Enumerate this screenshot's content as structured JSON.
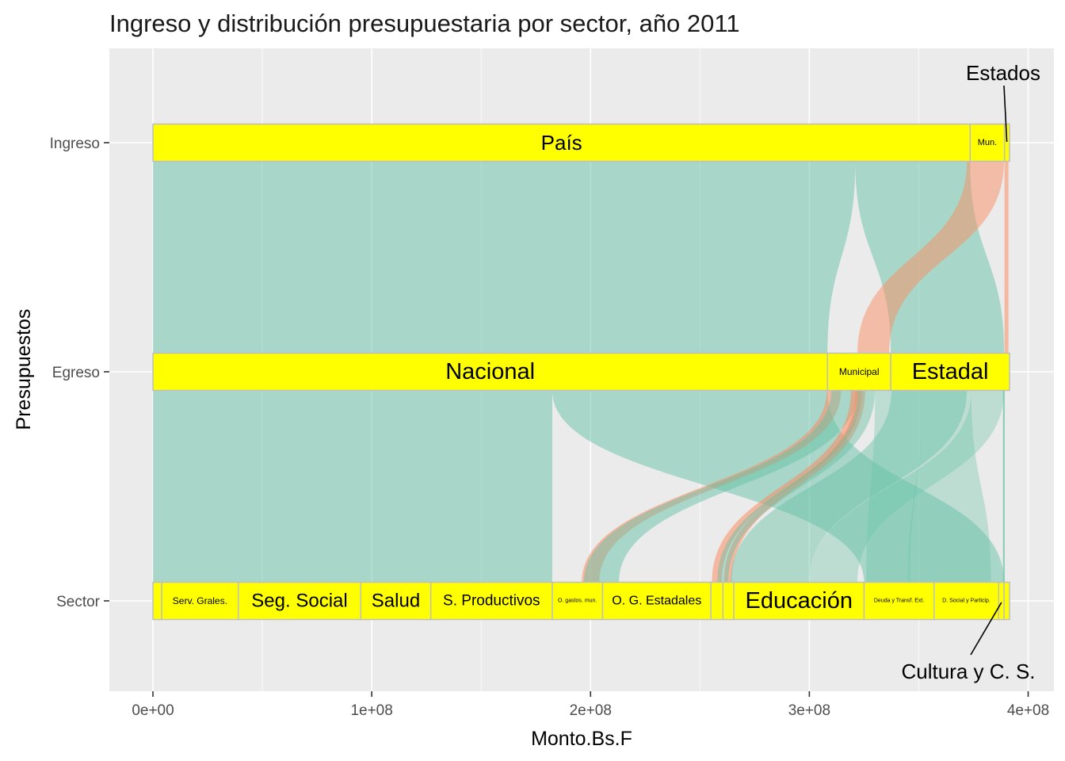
{
  "chart_data": {
    "type": "alluvial",
    "title": "Ingreso y distribución presupuestaria por sector, año 2011",
    "xlabel": "Monto.Bs.F",
    "ylabel": "Presupuestos",
    "xlim": [
      -20000000,
      410000000
    ],
    "x_ticks": [
      {
        "value": 0,
        "label": "0e+00"
      },
      {
        "value": 100000000,
        "label": "1e+08"
      },
      {
        "value": 200000000,
        "label": "2e+08"
      },
      {
        "value": 300000000,
        "label": "3e+08"
      },
      {
        "value": 400000000,
        "label": "4e+08"
      }
    ],
    "axes": [
      "Ingreso",
      "Egreso",
      "Sector"
    ],
    "colors": {
      "panel": "#EBEBEB",
      "grid": "#FFFFFF",
      "node_fill": "#FFFF00",
      "node_border": "#BEBEBE",
      "flow_teal": "#66C2A5",
      "flow_salmon": "#FC8D62"
    },
    "nodes": [
      {
        "axis": "Ingreso",
        "label": "País",
        "start": 0,
        "end": 373500000,
        "size": 26
      },
      {
        "axis": "Ingreso",
        "label": "Mun.",
        "start": 373500000,
        "end": 389200000,
        "size": 11
      },
      {
        "axis": "Ingreso",
        "label": "",
        "start": 389200000,
        "end": 391500000,
        "size": 0
      },
      {
        "axis": "Egreso",
        "label": "Nacional",
        "start": 0,
        "end": 308300000,
        "size": 29
      },
      {
        "axis": "Egreso",
        "label": "Municipal",
        "start": 308300000,
        "end": 337200000,
        "size": 12
      },
      {
        "axis": "Egreso",
        "label": "Estadal",
        "start": 337200000,
        "end": 391500000,
        "size": 29
      },
      {
        "axis": "Sector",
        "label": "",
        "start": 0,
        "end": 4000000,
        "size": 0
      },
      {
        "axis": "Sector",
        "label": "Serv. Grales.",
        "start": 4000000,
        "end": 39000000,
        "size": 12
      },
      {
        "axis": "Sector",
        "label": "Seg. Social",
        "start": 39000000,
        "end": 95000000,
        "size": 24
      },
      {
        "axis": "Sector",
        "label": "Salud",
        "start": 95000000,
        "end": 127000000,
        "size": 24
      },
      {
        "axis": "Sector",
        "label": "S. Productivos",
        "start": 127000000,
        "end": 182500000,
        "size": 19
      },
      {
        "axis": "Sector",
        "label": "O. gastos. mun.",
        "start": 182500000,
        "end": 205500000,
        "size": 7
      },
      {
        "axis": "Sector",
        "label": "O. G. Estadales",
        "start": 205500000,
        "end": 255000000,
        "size": 16
      },
      {
        "axis": "Sector",
        "label": "",
        "start": 255000000,
        "end": 260500000,
        "size": 0
      },
      {
        "axis": "Sector",
        "label": "",
        "start": 260500000,
        "end": 265500000,
        "size": 0
      },
      {
        "axis": "Sector",
        "label": "Educación",
        "start": 265500000,
        "end": 325000000,
        "size": 29
      },
      {
        "axis": "Sector",
        "label": "Deuda y Transf. Ext.",
        "start": 325000000,
        "end": 357000000,
        "size": 7
      },
      {
        "axis": "Sector",
        "label": "D. Social y Particip.",
        "start": 357000000,
        "end": 386500000,
        "size": 7
      },
      {
        "axis": "Sector",
        "label": "",
        "start": 386500000,
        "end": 389000000,
        "size": 0
      },
      {
        "axis": "Sector",
        "label": "",
        "start": 389000000,
        "end": 391500000,
        "size": 0
      }
    ],
    "flows_ingreso_egreso": [
      {
        "from": "País",
        "to": "Nacional",
        "from_range": [
          0,
          321000000
        ],
        "to_range": [
          0,
          308300000
        ],
        "color": "teal",
        "opacity": 0.5
      },
      {
        "from": "País",
        "to": "Estadal",
        "from_range": [
          321000000,
          373500000
        ],
        "to_range": [
          337200000,
          389000000
        ],
        "color": "teal",
        "opacity": 0.5
      },
      {
        "from": "Mun.",
        "to": "Municipal",
        "from_range": [
          372000000,
          389000000
        ],
        "to_range": [
          322000000,
          336500000
        ],
        "color": "salmon",
        "opacity": 0.5
      },
      {
        "from": "Estados",
        "to": "Estadal",
        "from_range": [
          389200000,
          391000000
        ],
        "to_range": [
          389200000,
          391000000
        ],
        "color": "salmon",
        "opacity": 0.55
      }
    ],
    "flows_egreso_sector": [
      {
        "from": "Nacional",
        "to": "",
        "from_range": [
          0,
          182500000
        ],
        "to_range": [
          0,
          182500000
        ],
        "color": "teal",
        "opacity": 0.5
      },
      {
        "from": "Nacional",
        "to": "",
        "from_range": [
          182500000,
          308300000
        ],
        "to_range": [
          325000000,
          389000000
        ],
        "color": "teal",
        "opacity": 0.5
      },
      {
        "from": "Municipal",
        "to": "",
        "from_range": [
          308000000,
          314500000
        ],
        "to_range": [
          196000000,
          204000000
        ],
        "color": "salmon",
        "opacity": 0.55
      },
      {
        "from": "Municipal",
        "to": "",
        "from_range": [
          310000000,
          322000000
        ],
        "to_range": [
          197000000,
          213000000
        ],
        "color": "teal",
        "opacity": 0.5
      },
      {
        "from": "Municipal",
        "to": "",
        "from_range": [
          319000000,
          324000000
        ],
        "to_range": [
          255500000,
          260000000
        ],
        "color": "salmon",
        "opacity": 0.55
      },
      {
        "from": "Municipal",
        "to": "",
        "from_range": [
          321000000,
          325500000
        ],
        "to_range": [
          261000000,
          264500000
        ],
        "color": "salmon",
        "opacity": 0.55
      },
      {
        "from": "Municipal",
        "to": "",
        "from_range": [
          322000000,
          330000000
        ],
        "to_range": [
          258000000,
          263000000
        ],
        "color": "teal",
        "opacity": 0.45
      },
      {
        "from": "Estadal",
        "to": "",
        "from_range": [
          337500000,
          372000000
        ],
        "to_range": [
          264000000,
          300000000
        ],
        "color": "teal",
        "opacity": 0.45
      },
      {
        "from": "Estadal",
        "to": "",
        "from_range": [
          330000000,
          352000000
        ],
        "to_range": [
          326000000,
          346000000
        ],
        "color": "teal",
        "opacity": 0.35
      },
      {
        "from": "Estadal",
        "to": "",
        "from_range": [
          352000000,
          374000000
        ],
        "to_range": [
          345000000,
          383000000
        ],
        "color": "teal",
        "opacity": 0.35
      },
      {
        "from": "Estadal",
        "to": "",
        "from_range": [
          374000000,
          389000000
        ],
        "to_range": [
          300000000,
          322000000
        ],
        "color": "teal",
        "opacity": 0.35
      },
      {
        "from": "Estadal",
        "to": "",
        "from_range": [
          388500000,
          389300000
        ],
        "to_range": [
          388500000,
          389300000
        ],
        "color": "teal",
        "opacity": 0.7
      }
    ],
    "annotations": [
      {
        "text": "Estados",
        "points_to": "Ingreso",
        "value": 389900000
      },
      {
        "text": "Cultura y C. S.",
        "points_to": "Sector",
        "value": 387800000
      }
    ]
  }
}
